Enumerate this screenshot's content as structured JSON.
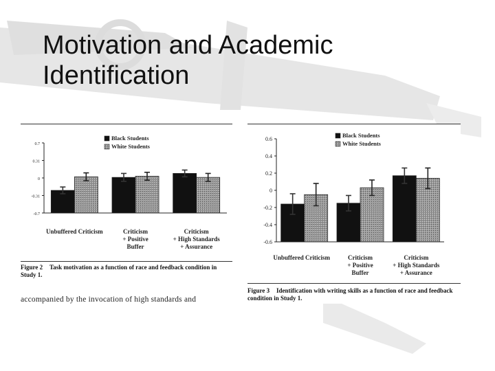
{
  "slide": {
    "title_line1": "Motivation and Academic",
    "title_line2": "Identification"
  },
  "colors": {
    "black_students": "#111111",
    "white_students": "#9a9a9a"
  },
  "chart_data": [
    {
      "type": "bar",
      "categories": [
        "Unbuffered Criticism",
        "Criticism + Positive Buffer",
        "Criticism + High Standards + Assurance"
      ],
      "category_lines": [
        [
          "Unbuffered Criticism"
        ],
        [
          "Criticism",
          "+ Positive",
          "Buffer"
        ],
        [
          "Criticism",
          "+ High Standards",
          "+ Assurance"
        ]
      ],
      "series": [
        {
          "name": "Black Students",
          "values": [
            -0.22,
            0.01,
            0.08
          ]
        },
        {
          "name": "White Students",
          "values": [
            0.02,
            0.03,
            0.01
          ]
        }
      ],
      "errors": [
        [
          0.06,
          0.07,
          0.06
        ],
        [
          0.07,
          0.07,
          0.07
        ]
      ],
      "yticks": [
        0.7,
        0.31,
        0,
        -0.31,
        -0.7
      ],
      "ytick_labels": [
        "0.7",
        "0.31",
        "0",
        "-0.31",
        "-0.7"
      ],
      "ylim": [
        -0.7,
        0.7
      ],
      "y_scale_note": "nonlinear tick spacing as printed",
      "legend_position": "top",
      "caption_label": "Figure 2",
      "caption_text": "Task motivation as a function of race and feedback condition in Study 1.",
      "below_text": "accompanied by the invocation of high standards and"
    },
    {
      "type": "bar",
      "categories": [
        "Unbuffered Criticism",
        "Criticism + Positive Buffer",
        "Criticism + High Standards + Assurance"
      ],
      "category_lines": [
        [
          "Unbuffered Criticism"
        ],
        [
          "Criticism",
          "+ Positive",
          "Buffer"
        ],
        [
          "Criticism",
          "+ High Standards",
          "+ Assurance"
        ]
      ],
      "series": [
        {
          "name": "Black Students",
          "values": [
            -0.16,
            -0.15,
            0.17
          ]
        },
        {
          "name": "White Students",
          "values": [
            -0.05,
            0.03,
            0.14
          ]
        }
      ],
      "errors": [
        [
          0.12,
          0.09,
          0.09
        ],
        [
          0.13,
          0.09,
          0.12
        ]
      ],
      "yticks": [
        0.6,
        0.4,
        0.2,
        0,
        -0.2,
        -0.4,
        -0.6
      ],
      "ytick_labels": [
        "0.6",
        "0.4",
        "0.2",
        "0",
        "-0.2",
        "-0.4",
        "-0.6"
      ],
      "ylim": [
        -0.6,
        0.6
      ],
      "legend_position": "top",
      "caption_label": "Figure 3",
      "caption_text": "Identification with writing skills as a function of race and feedback condition in Study 1."
    }
  ]
}
